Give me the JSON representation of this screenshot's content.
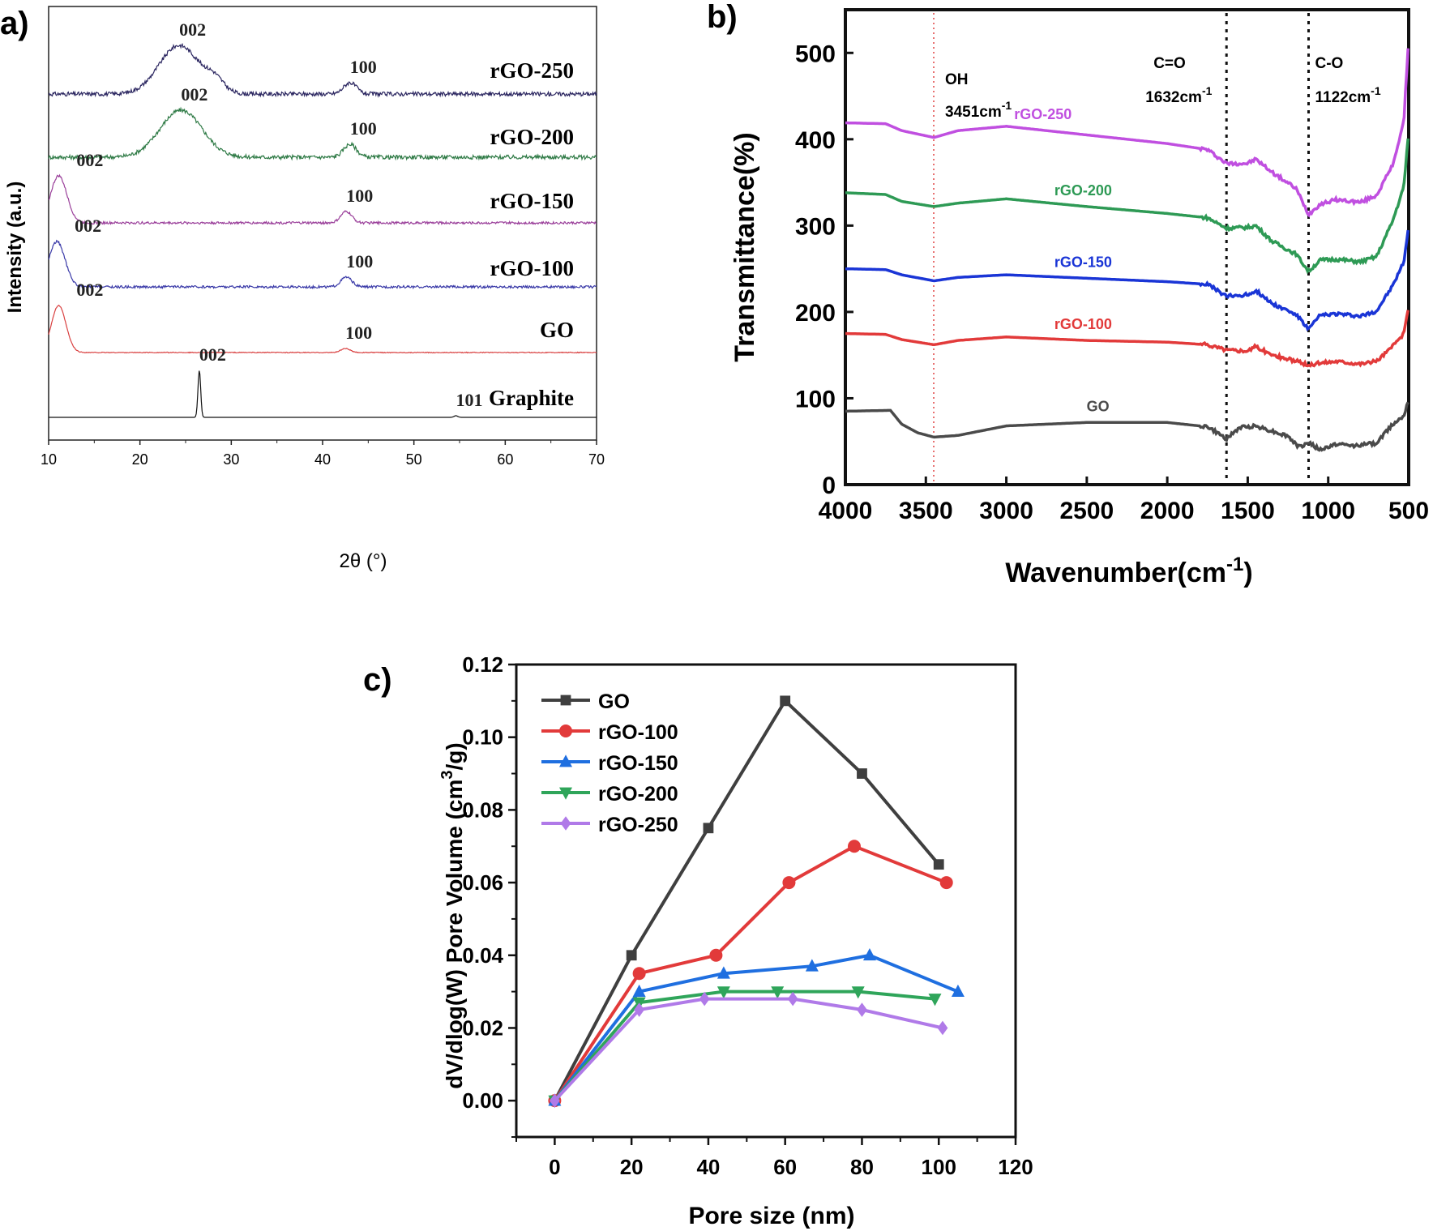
{
  "panel_labels": {
    "a": "a)",
    "b": "b)",
    "c": "c)"
  },
  "chart_data": [
    {
      "id": "a",
      "type": "line",
      "xlabel": "2θ (°)",
      "ylabel": "Intensity (a.u.)",
      "xlim": [
        10,
        70
      ],
      "xticks": [
        10,
        20,
        30,
        40,
        50,
        60,
        70
      ],
      "grid": false,
      "series": [
        {
          "name": "rGO-250",
          "color": "#2b2660",
          "offset": 500,
          "noise": 5,
          "peaks": [
            {
              "x": 24.3,
              "h": 60,
              "w": 2.2
            },
            {
              "x": 28.2,
              "h": 14,
              "w": 1.0
            },
            {
              "x": 43.0,
              "h": 14,
              "w": 0.7
            }
          ],
          "annotations": [
            {
              "text": "002",
              "x": 24.3
            },
            {
              "text": "100",
              "x": 43.0
            }
          ]
        },
        {
          "name": "rGO-200",
          "color": "#2e7a45",
          "offset": 400,
          "noise": 5,
          "peaks": [
            {
              "x": 24.5,
              "h": 58,
              "w": 2.3
            },
            {
              "x": 43.0,
              "h": 16,
              "w": 0.7
            }
          ],
          "annotations": [
            {
              "text": "002",
              "x": 24.5
            },
            {
              "text": "100",
              "x": 43.0
            }
          ]
        },
        {
          "name": "rGO-150",
          "color": "#9a3f9a",
          "offset": 300,
          "noise": 3,
          "peaks": [
            {
              "x": 11.1,
              "h": 58,
              "w": 0.9
            },
            {
              "x": 42.6,
              "h": 14,
              "w": 0.6
            }
          ],
          "annotations": [
            {
              "text": "002",
              "x": 11.1
            },
            {
              "text": "100",
              "x": 42.6
            }
          ]
        },
        {
          "name": "rGO-100",
          "color": "#3a3aa8",
          "offset": 200,
          "noise": 3,
          "peaks": [
            {
              "x": 10.9,
              "h": 56,
              "w": 0.9
            },
            {
              "x": 42.6,
              "h": 12,
              "w": 0.6
            }
          ],
          "annotations": [
            {
              "text": "002",
              "x": 10.9
            },
            {
              "text": "100",
              "x": 42.6
            }
          ]
        },
        {
          "name": "GO",
          "color": "#d94040",
          "offset": 100,
          "noise": 1,
          "peaks": [
            {
              "x": 11.1,
              "h": 58,
              "w": 0.8
            },
            {
              "x": 42.5,
              "h": 5,
              "w": 0.5
            }
          ],
          "annotations": [
            {
              "text": "002",
              "x": 11.1
            },
            {
              "text": "100",
              "x": 42.5
            }
          ]
        },
        {
          "name": "Graphite",
          "color": "#111111",
          "offset": 0,
          "noise": 0,
          "peaks": [
            {
              "x": 26.5,
              "h": 58,
              "w": 0.15
            },
            {
              "x": 54.6,
              "h": 2,
              "w": 0.2
            }
          ],
          "annotations": [
            {
              "text": "002",
              "x": 26.5
            },
            {
              "text": "101",
              "x": 54.6
            }
          ]
        }
      ]
    },
    {
      "id": "b",
      "type": "line",
      "xlabel": "Wavenumber(cm",
      "xlabel_sup": "-1",
      "xlabel_tail": ")",
      "ylabel": "Transmittance(%)",
      "xlim": [
        4000,
        500
      ],
      "ylim": [
        0,
        550
      ],
      "xticks": [
        4000,
        3500,
        3000,
        2500,
        2000,
        1500,
        1000,
        500
      ],
      "yticks": [
        0,
        100,
        200,
        300,
        400,
        500
      ],
      "grid": false,
      "reference_lines": [
        {
          "x": 3451,
          "style": "dotted",
          "color": "#e04040",
          "label": "OH",
          "label2": "3451cm",
          "sup": "-1"
        },
        {
          "x": 1632,
          "style": "dotted",
          "color": "#111111",
          "label": "C=O",
          "label2": "1632cm",
          "sup": "-1"
        },
        {
          "x": 1122,
          "style": "dotted",
          "color": "#111111",
          "label": "C-O",
          "label2": "1122cm",
          "sup": "-1"
        }
      ],
      "series": [
        {
          "name": "rGO-250",
          "color": "#c04fe0",
          "label_x": 2750,
          "points": [
            [
              4000,
              419
            ],
            [
              3750,
              418
            ],
            [
              3650,
              410
            ],
            [
              3450,
              402
            ],
            [
              3300,
              410
            ],
            [
              3000,
              415
            ],
            [
              2500,
              405
            ],
            [
              2000,
              395
            ],
            [
              1750,
              388
            ],
            [
              1632,
              372
            ],
            [
              1500,
              372
            ],
            [
              1450,
              377
            ],
            [
              1350,
              362
            ],
            [
              1200,
              343
            ],
            [
              1122,
              313
            ],
            [
              1050,
              325
            ],
            [
              950,
              330
            ],
            [
              800,
              327
            ],
            [
              700,
              335
            ],
            [
              600,
              370
            ],
            [
              530,
              420
            ],
            [
              500,
              520
            ]
          ]
        },
        {
          "name": "rGO-200",
          "color": "#2e9a55",
          "label_x": 2500,
          "points": [
            [
              4000,
              338
            ],
            [
              3750,
              336
            ],
            [
              3650,
              328
            ],
            [
              3450,
              322
            ],
            [
              3300,
              326
            ],
            [
              3000,
              331
            ],
            [
              2500,
              322
            ],
            [
              2000,
              314
            ],
            [
              1750,
              309
            ],
            [
              1632,
              297
            ],
            [
              1500,
              298
            ],
            [
              1450,
              300
            ],
            [
              1350,
              282
            ],
            [
              1200,
              267
            ],
            [
              1122,
              247
            ],
            [
              1050,
              260
            ],
            [
              950,
              261
            ],
            [
              800,
              258
            ],
            [
              700,
              264
            ],
            [
              600,
              305
            ],
            [
              530,
              345
            ],
            [
              500,
              410
            ]
          ]
        },
        {
          "name": "rGO-150",
          "color": "#1a35d6",
          "label_x": 2500,
          "points": [
            [
              4000,
              250
            ],
            [
              3750,
              249
            ],
            [
              3650,
              243
            ],
            [
              3450,
              236
            ],
            [
              3300,
              240
            ],
            [
              3000,
              243
            ],
            [
              2500,
              239
            ],
            [
              2000,
              235
            ],
            [
              1750,
              232
            ],
            [
              1632,
              218
            ],
            [
              1500,
              220
            ],
            [
              1450,
              225
            ],
            [
              1350,
              210
            ],
            [
              1200,
              197
            ],
            [
              1122,
              180
            ],
            [
              1050,
              196
            ],
            [
              950,
              198
            ],
            [
              800,
              195
            ],
            [
              700,
              201
            ],
            [
              600,
              230
            ],
            [
              530,
              258
            ],
            [
              500,
              300
            ]
          ]
        },
        {
          "name": "rGO-100",
          "color": "#e23a3a",
          "label_x": 2500,
          "points": [
            [
              4000,
              175
            ],
            [
              3750,
              174
            ],
            [
              3650,
              168
            ],
            [
              3450,
              162
            ],
            [
              3300,
              167
            ],
            [
              3000,
              171
            ],
            [
              2500,
              167
            ],
            [
              2000,
              165
            ],
            [
              1750,
              162
            ],
            [
              1632,
              156
            ],
            [
              1500,
              155
            ],
            [
              1450,
              160
            ],
            [
              1350,
              150
            ],
            [
              1200,
              143
            ],
            [
              1122,
              138
            ],
            [
              1050,
              141
            ],
            [
              950,
              143
            ],
            [
              800,
              140
            ],
            [
              700,
              143
            ],
            [
              600,
              160
            ],
            [
              530,
              175
            ],
            [
              500,
              205
            ]
          ]
        },
        {
          "name": "GO",
          "color": "#4a4a4a",
          "label_x": 2300,
          "points": [
            [
              4000,
              85
            ],
            [
              3720,
              86
            ],
            [
              3650,
              70
            ],
            [
              3550,
              60
            ],
            [
              3450,
              55
            ],
            [
              3300,
              57
            ],
            [
              3000,
              68
            ],
            [
              2500,
              72
            ],
            [
              2000,
              72
            ],
            [
              1750,
              67
            ],
            [
              1632,
              53
            ],
            [
              1550,
              66
            ],
            [
              1450,
              68
            ],
            [
              1350,
              62
            ],
            [
              1250,
              56
            ],
            [
              1180,
              43
            ],
            [
              1122,
              49
            ],
            [
              1050,
              40
            ],
            [
              950,
              47
            ],
            [
              850,
              45
            ],
            [
              700,
              48
            ],
            [
              600,
              70
            ],
            [
              530,
              80
            ],
            [
              500,
              100
            ]
          ]
        }
      ]
    },
    {
      "id": "c",
      "type": "line",
      "xlabel": "Pore size (nm)",
      "ylabel": "dV/dlog(W) Pore Volume (cm",
      "ylabel_sup": "3",
      "ylabel_tail": "/g)",
      "xlim": [
        -10,
        120
      ],
      "ylim": [
        -0.01,
        0.12
      ],
      "xticks": [
        0,
        20,
        40,
        60,
        80,
        100,
        120
      ],
      "yticks": [
        0.0,
        0.02,
        0.04,
        0.06,
        0.08,
        0.1,
        0.12
      ],
      "ytick_labels": [
        "0.00",
        "0.02",
        "0.04",
        "0.06",
        "0.08",
        "0.10",
        "0.12"
      ],
      "grid": false,
      "legend": "top-left",
      "series": [
        {
          "name": "GO",
          "color": "#3f3f3f",
          "marker": "square",
          "x": [
            0,
            20,
            40,
            60,
            80,
            100
          ],
          "y": [
            0.0,
            0.04,
            0.075,
            0.11,
            0.09,
            0.065
          ]
        },
        {
          "name": "rGO-100",
          "color": "#e23a3a",
          "marker": "circle",
          "x": [
            0,
            22,
            42,
            61,
            78,
            102
          ],
          "y": [
            0.0,
            0.035,
            0.04,
            0.06,
            0.07,
            0.06
          ]
        },
        {
          "name": "rGO-150",
          "color": "#1f6fe0",
          "marker": "triangle-up",
          "x": [
            0,
            22,
            44,
            67,
            82,
            105
          ],
          "y": [
            0.0,
            0.03,
            0.035,
            0.037,
            0.04,
            0.03
          ]
        },
        {
          "name": "rGO-200",
          "color": "#2fa55a",
          "marker": "triangle-down",
          "x": [
            0,
            22,
            44,
            58,
            79,
            99
          ],
          "y": [
            0.0,
            0.027,
            0.03,
            0.03,
            0.03,
            0.028
          ]
        },
        {
          "name": "rGO-250",
          "color": "#b07ae8",
          "marker": "diamond",
          "x": [
            0,
            22,
            39,
            62,
            80,
            101
          ],
          "y": [
            0.0,
            0.025,
            0.028,
            0.028,
            0.025,
            0.02
          ]
        }
      ]
    }
  ]
}
